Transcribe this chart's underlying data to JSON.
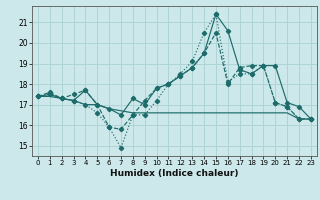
{
  "xlabel": "Humidex (Indice chaleur)",
  "bg_color": "#cde8ea",
  "grid_color": "#aed4d6",
  "line_color": "#1e6b6b",
  "xmin": -0.5,
  "xmax": 23.5,
  "ymin": 14.5,
  "ymax": 21.8,
  "yticks": [
    15,
    16,
    17,
    18,
    19,
    20,
    21
  ],
  "xticks": [
    0,
    1,
    2,
    3,
    4,
    5,
    6,
    7,
    8,
    9,
    10,
    11,
    12,
    13,
    14,
    15,
    16,
    17,
    18,
    19,
    20,
    21,
    22,
    23
  ],
  "series_dashed_markers": [
    17.4,
    17.6,
    17.3,
    17.5,
    17.7,
    17.0,
    15.9,
    15.8,
    16.5,
    17.2,
    17.8,
    18.0,
    18.4,
    18.8,
    19.5,
    20.5,
    18.0,
    18.8,
    18.9,
    18.9,
    17.1,
    16.9,
    16.3,
    16.3
  ],
  "series_dotted_markers": [
    17.4,
    17.5,
    17.3,
    17.2,
    17.0,
    16.6,
    15.9,
    14.9,
    16.5,
    16.5,
    17.2,
    18.0,
    18.5,
    19.1,
    20.5,
    21.4,
    18.1,
    18.5,
    18.5,
    18.9,
    17.1,
    16.9,
    16.3,
    16.3
  ],
  "series_solid_markers": [
    17.4,
    17.5,
    17.3,
    17.2,
    17.7,
    17.0,
    16.8,
    16.5,
    17.3,
    17.0,
    17.8,
    18.0,
    18.4,
    18.8,
    19.5,
    21.4,
    20.6,
    18.7,
    18.5,
    18.9,
    18.9,
    17.1,
    16.9,
    16.3
  ],
  "series_flat": [
    17.4,
    17.4,
    17.3,
    17.2,
    17.0,
    17.0,
    16.8,
    16.7,
    16.6,
    16.6,
    16.6,
    16.6,
    16.6,
    16.6,
    16.6,
    16.6,
    16.6,
    16.6,
    16.6,
    16.6,
    16.6,
    16.6,
    16.3,
    16.3
  ]
}
